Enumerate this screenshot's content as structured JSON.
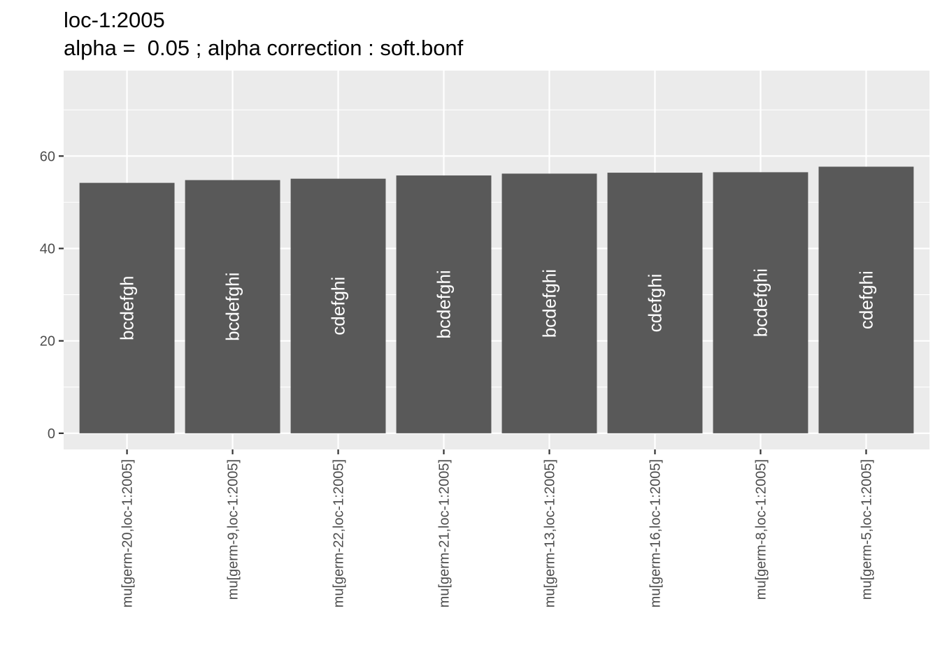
{
  "chart_data": {
    "type": "bar",
    "title": "loc-1:2005",
    "subtitle": "alpha =  0.05 ; alpha correction : soft.bonf",
    "xlabel": "",
    "ylabel": "",
    "categories": [
      "mu[germ-20,loc-1:2005]",
      "mu[germ-9,loc-1:2005]",
      "mu[germ-22,loc-1:2005]",
      "mu[germ-21,loc-1:2005]",
      "mu[germ-13,loc-1:2005]",
      "mu[germ-16,loc-1:2005]",
      "mu[germ-8,loc-1:2005]",
      "mu[germ-5,loc-1:2005]"
    ],
    "values": [
      54.2,
      54.8,
      55.1,
      55.8,
      56.2,
      56.4,
      56.5,
      57.7
    ],
    "groups": [
      "bcdefgh",
      "bcdefghi",
      "cdefghi",
      "bcdefghi",
      "bcdefghi",
      "cdefghi",
      "bcdefghi",
      "cdefghi"
    ],
    "yticks": [
      0,
      20,
      40,
      60
    ],
    "ylim": [
      -3.5,
      78.5
    ],
    "grid": true,
    "colors": {
      "panel": "#ebebeb",
      "gridline": "#ffffff",
      "bar": "#595959",
      "bar_label": "#ffffff",
      "tick": "#333333"
    }
  }
}
